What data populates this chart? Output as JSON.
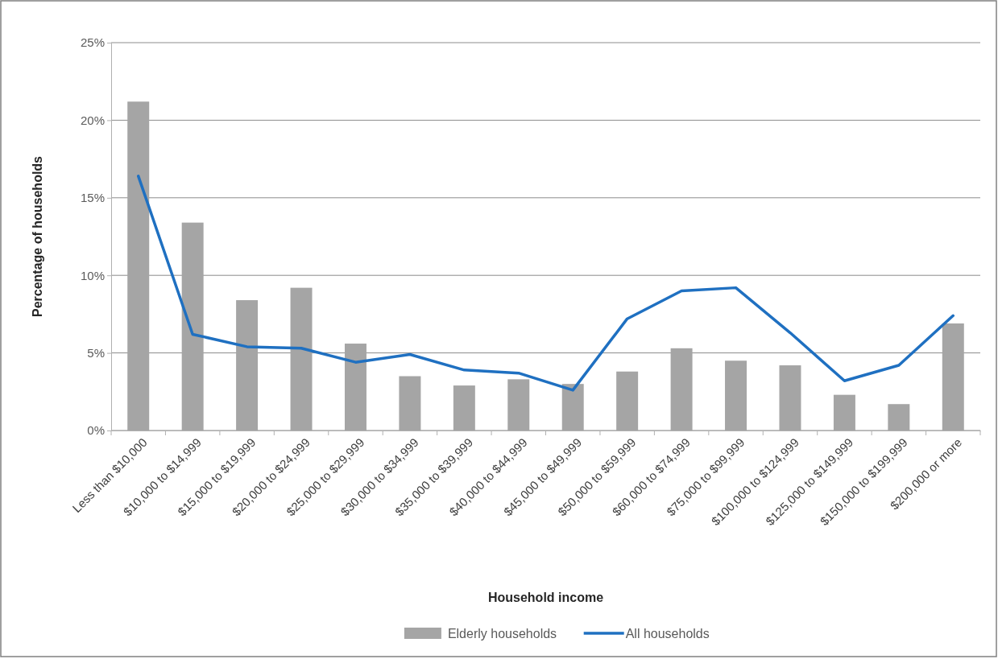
{
  "chart_data": {
    "type": "bar",
    "xlabel": "Household income",
    "ylabel": "Percentage of households",
    "categories": [
      "Less than $10,000",
      "$10,000 to $14,999",
      "$15,000 to $19,999",
      "$20,000 to $24,999",
      "$25,000 to $29,999",
      "$30,000 to $34,999",
      "$35,000 to $39,999",
      "$40,000 to $44,999",
      "$45,000 to $49,999",
      "$50,000 to $59,999",
      "$60,000 to $74,999",
      "$75,000 to $99,999",
      "$100,000 to $124,999",
      "$125,000 to $149,999",
      "$150,000 to $199,999",
      "$200,000 or more"
    ],
    "series": [
      {
        "name": "Elderly households",
        "color": "#a5a5a5",
        "values": [
          21.2,
          13.4,
          8.4,
          9.2,
          5.6,
          3.5,
          2.9,
          3.3,
          3.0,
          3.8,
          5.3,
          4.5,
          4.2,
          2.3,
          1.7,
          6.9
        ]
      },
      {
        "name": "All households",
        "type": "line",
        "color": "#1f70c1",
        "values": [
          16.4,
          6.2,
          5.4,
          5.3,
          4.4,
          4.9,
          3.9,
          3.7,
          2.6,
          7.2,
          9.0,
          9.2,
          6.3,
          3.2,
          4.2,
          7.4
        ]
      }
    ],
    "ylim": [
      0,
      25
    ],
    "yticks": [
      {
        "value": 0,
        "label": "0%"
      },
      {
        "value": 5,
        "label": "5%"
      },
      {
        "value": 10,
        "label": "10%"
      },
      {
        "value": 15,
        "label": "15%"
      },
      {
        "value": 20,
        "label": "20%"
      },
      {
        "value": 25,
        "label": "25%"
      }
    ],
    "grid": "y",
    "legend": "bottom",
    "marker": "none",
    "line_style": "solid"
  }
}
